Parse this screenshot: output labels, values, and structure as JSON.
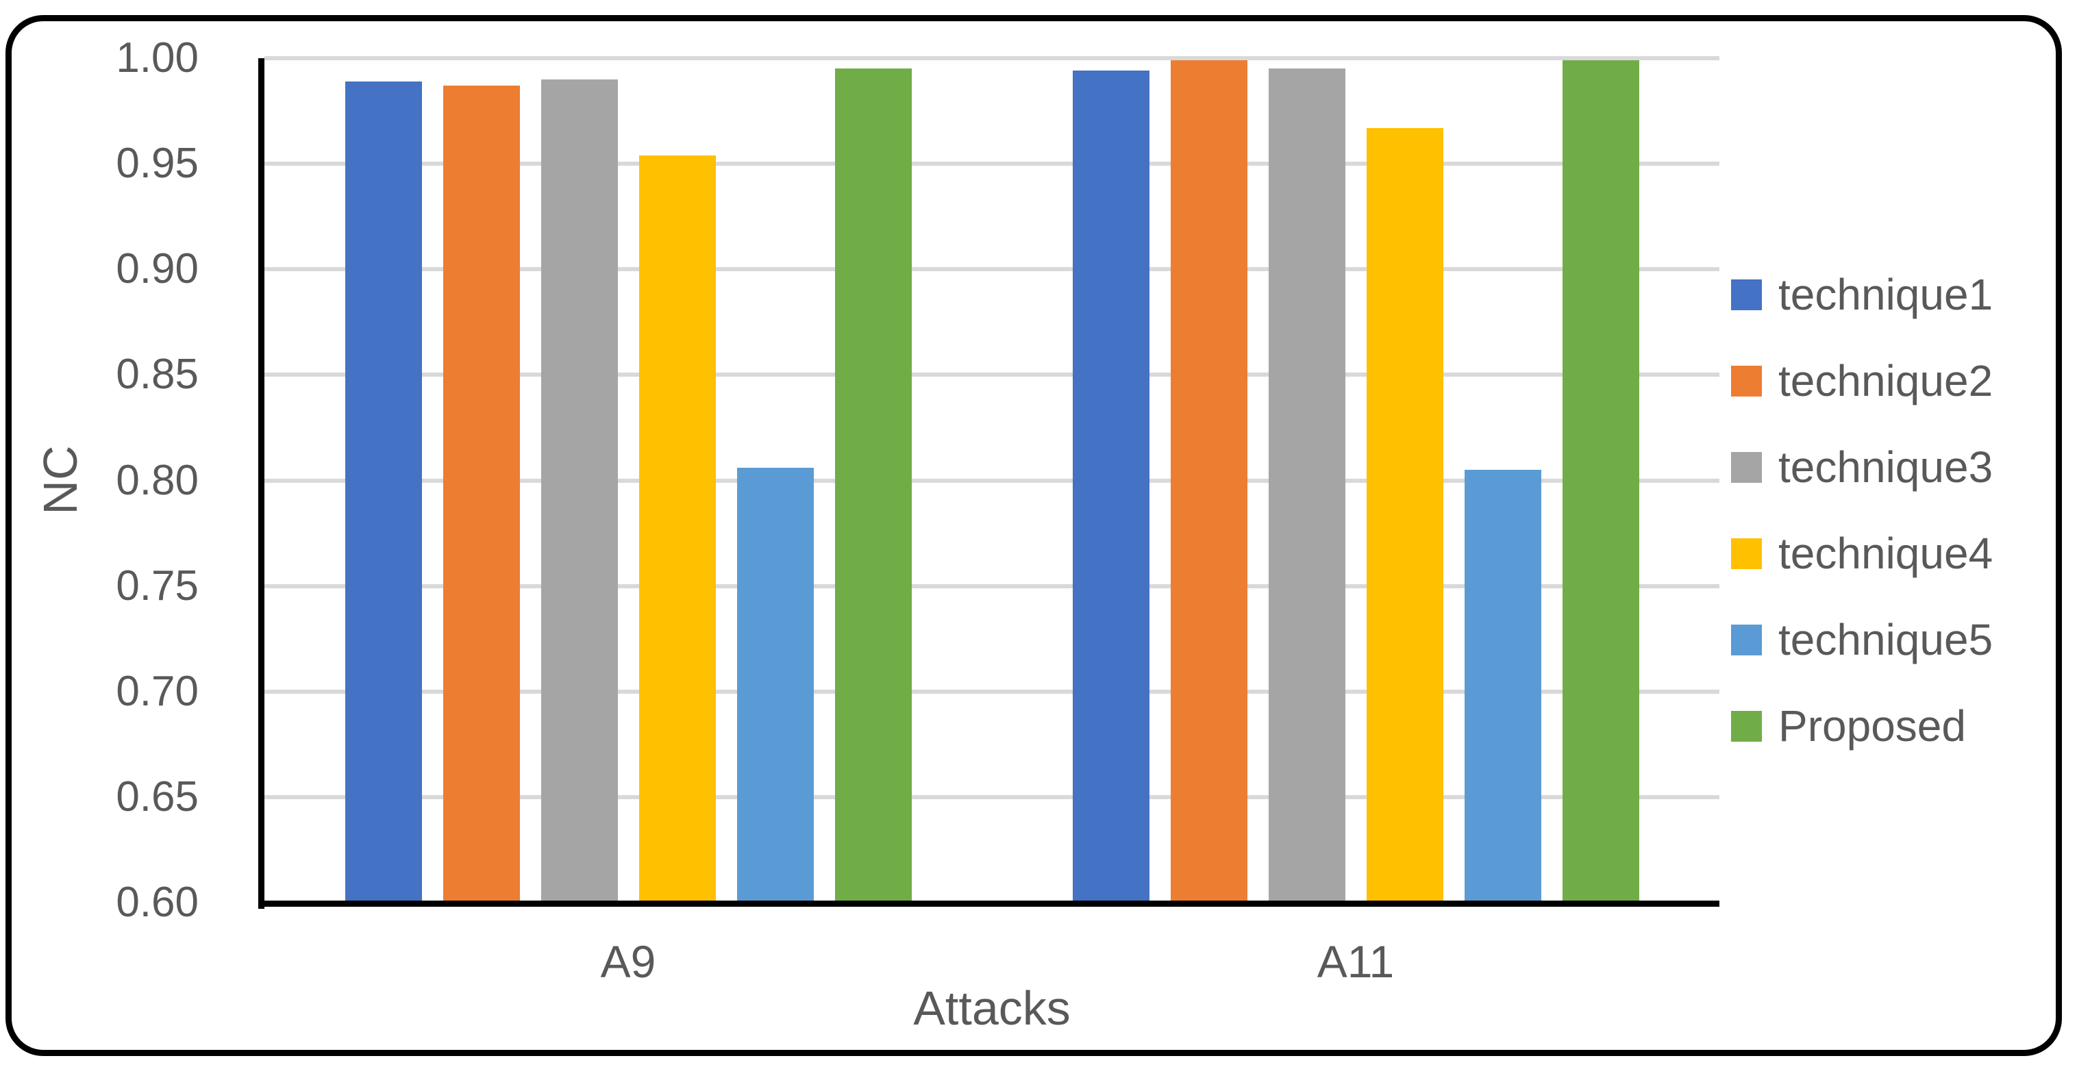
{
  "figure": {
    "background": "#ffffff",
    "border_color": "#000000"
  },
  "chart_data": {
    "type": "bar",
    "title": "",
    "xlabel": "Attacks",
    "ylabel": "NC",
    "categories": [
      "A9",
      "A11"
    ],
    "series": [
      {
        "name": "technique1",
        "color": "#4472C4",
        "values": [
          0.989,
          0.994
        ]
      },
      {
        "name": "technique2",
        "color": "#ED7D31",
        "values": [
          0.987,
          0.999
        ]
      },
      {
        "name": "technique3",
        "color": "#A5A5A5",
        "values": [
          0.99,
          0.995
        ]
      },
      {
        "name": "technique4",
        "color": "#FFC000",
        "values": [
          0.954,
          0.967
        ]
      },
      {
        "name": "technique5",
        "color": "#5B9BD5",
        "values": [
          0.806,
          0.805
        ]
      },
      {
        "name": "Proposed",
        "color": "#70AD47",
        "values": [
          0.995,
          0.999
        ]
      }
    ],
    "ylim": [
      0.6,
      1.0
    ],
    "ytick_step": 0.05,
    "yticks": [
      "1.00",
      "0.95",
      "0.90",
      "0.85",
      "0.80",
      "0.75",
      "0.70",
      "0.65",
      "0.60"
    ],
    "grid": true,
    "legend_position": "right",
    "gridline_color": "#D9D9D9",
    "axis_color": "#000000",
    "text_color": "#595959"
  }
}
